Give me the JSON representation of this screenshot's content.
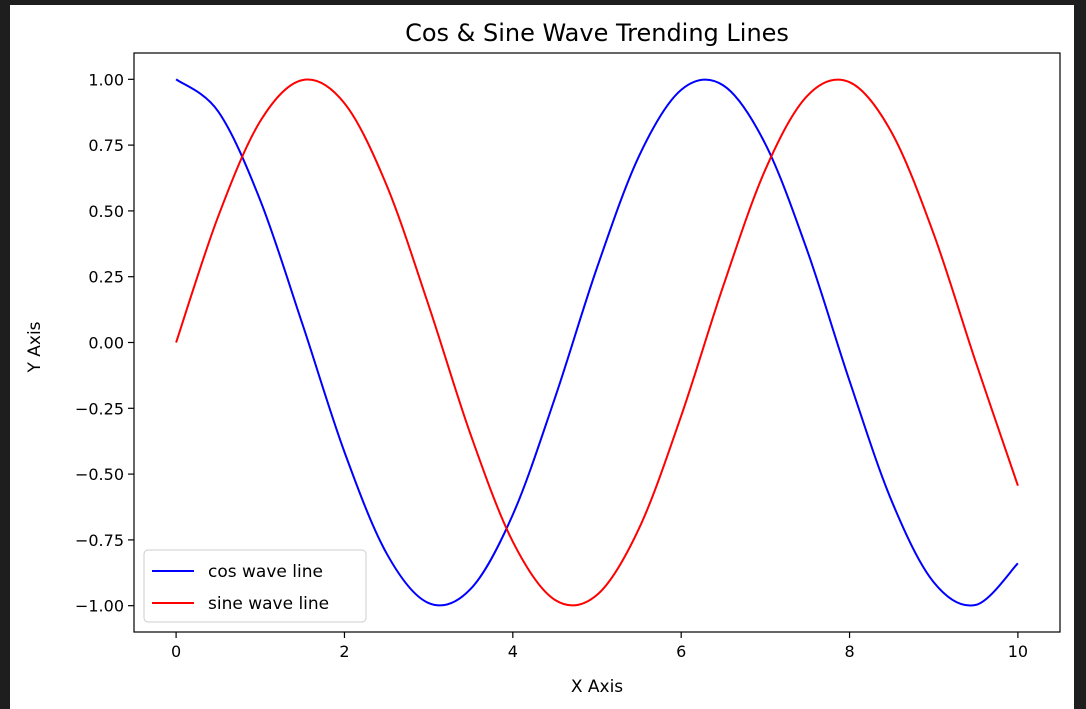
{
  "chart_data": {
    "type": "line",
    "title": "Cos & Sine Wave Trending Lines",
    "xlabel": "X Axis",
    "ylabel": "Y Axis",
    "xlim": [
      -0.5,
      10.5
    ],
    "ylim": [
      -1.1,
      1.1
    ],
    "grid": false,
    "legend_placement": "lower-left",
    "x_ticks": [
      0,
      2,
      4,
      6,
      8,
      10
    ],
    "x_tick_labels": [
      "0",
      "2",
      "4",
      "6",
      "8",
      "10"
    ],
    "y_ticks": [
      1.0,
      0.75,
      0.5,
      0.25,
      0.0,
      -0.25,
      -0.5,
      -0.75,
      -1.0
    ],
    "y_tick_labels": [
      "1.00",
      "0.75",
      "0.50",
      "0.25",
      "0.00",
      "−0.25",
      "−0.50",
      "−0.75",
      "−1.00"
    ],
    "x": [
      0.0,
      0.5,
      1.0,
      1.5,
      2.0,
      2.5,
      3.0,
      3.5,
      4.0,
      4.5,
      5.0,
      5.5,
      6.0,
      6.5,
      7.0,
      7.5,
      8.0,
      8.5,
      9.0,
      9.5,
      10.0
    ],
    "series": [
      {
        "name": "cos wave line",
        "color": "#0000ff",
        "values": [
          1.0,
          0.878,
          0.54,
          0.071,
          -0.416,
          -0.801,
          -0.99,
          -0.936,
          -0.654,
          -0.211,
          0.284,
          0.709,
          0.96,
          0.977,
          0.754,
          0.347,
          -0.146,
          -0.602,
          -0.911,
          -0.997,
          -0.839
        ]
      },
      {
        "name": "sine wave line",
        "color": "#ff0000",
        "values": [
          0.0,
          0.479,
          0.841,
          0.997,
          0.909,
          0.598,
          0.141,
          -0.351,
          -0.757,
          -0.978,
          -0.959,
          -0.706,
          -0.279,
          0.215,
          0.657,
          0.938,
          0.989,
          0.798,
          0.412,
          -0.075,
          -0.544
        ]
      }
    ]
  }
}
